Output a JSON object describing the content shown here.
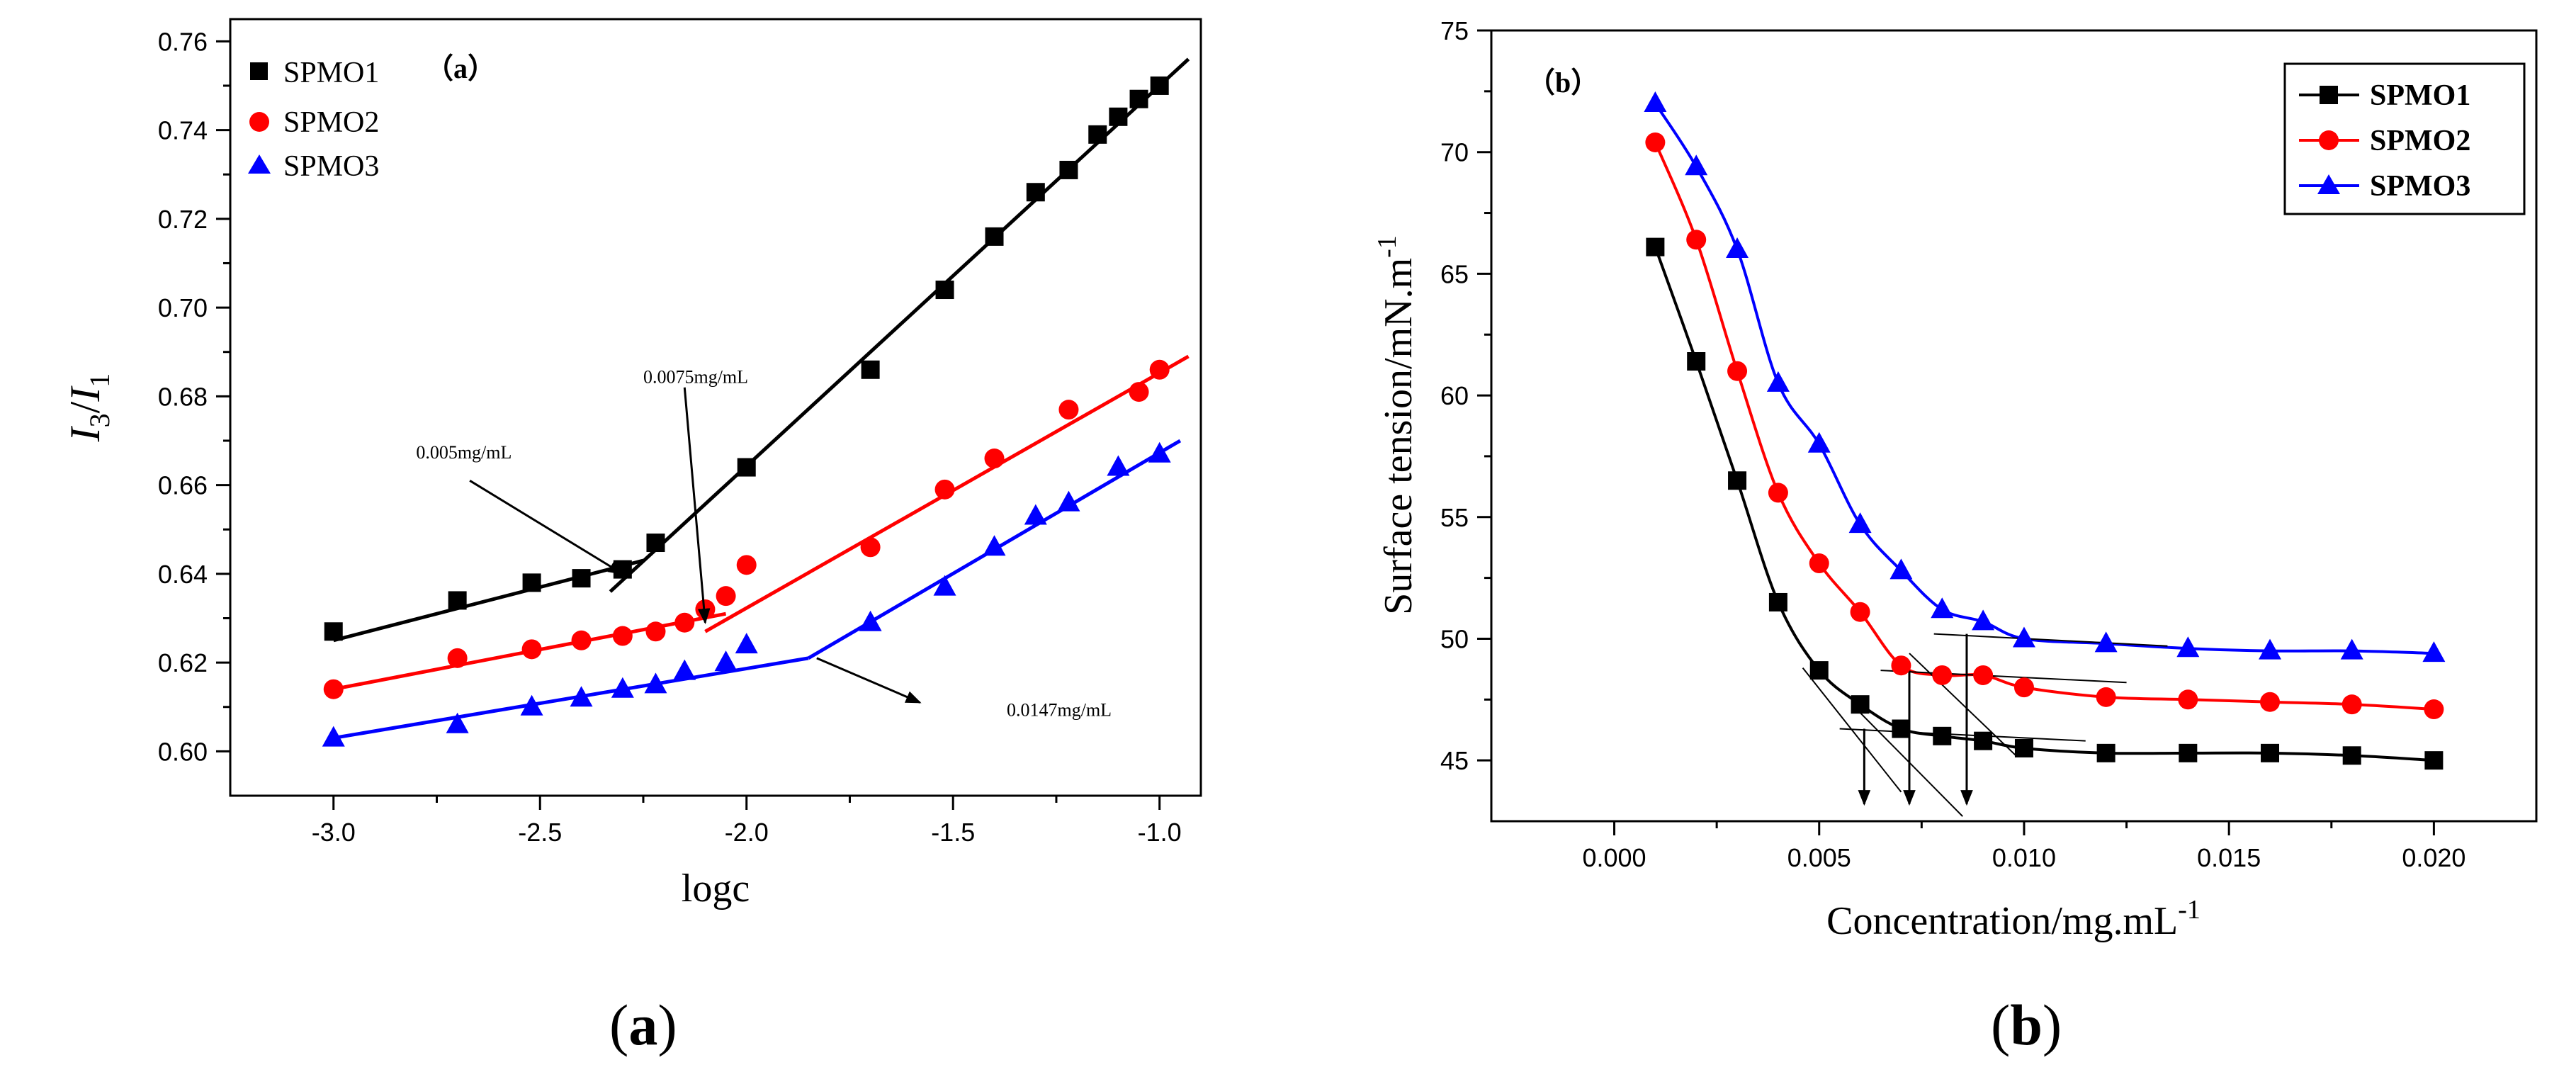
{
  "captions": {
    "a_open": "(",
    "a_letter": "a",
    "a_close": ")",
    "b_open": "(",
    "b_letter": "b",
    "b_close": ")"
  },
  "chart_data": [
    {
      "type": "scatter",
      "panel_label": "（a）",
      "title": "",
      "xlabel": "logc",
      "ylabel": {
        "main": "I",
        "sub1": "3",
        "slash": "/",
        "sub2": "1"
      },
      "xlim": [
        -3.25,
        -0.9
      ],
      "ylim": [
        0.59,
        0.765
      ],
      "xticks": [
        -3.0,
        -2.5,
        -2.0,
        -1.5,
        -1.0
      ],
      "xtick_labels": [
        "-3.0",
        "-2.5",
        "-2.0",
        "-1.5",
        "-1.0"
      ],
      "yticks": [
        0.6,
        0.62,
        0.64,
        0.66,
        0.68,
        0.7,
        0.72,
        0.74,
        0.76
      ],
      "ytick_labels": [
        "0.60",
        "0.62",
        "0.64",
        "0.66",
        "0.68",
        "0.70",
        "0.72",
        "0.74",
        "0.76"
      ],
      "legend": "top-left",
      "series": [
        {
          "name": "SPMO1",
          "marker": "square",
          "color": "#000000",
          "x": [
            -3.0,
            -2.7,
            -2.52,
            -2.4,
            -2.3,
            -2.22,
            -2.0,
            -1.7,
            -1.52,
            -1.4,
            -1.3,
            -1.22,
            -1.15,
            -1.1,
            -1.05,
            -1.0
          ],
          "y": [
            0.627,
            0.634,
            0.638,
            0.639,
            0.641,
            0.647,
            0.664,
            0.686,
            0.704,
            0.716,
            0.726,
            0.731,
            0.739,
            0.743,
            0.747,
            0.75
          ],
          "fit_lines": [
            {
              "x": [
                -3.0,
                -2.25
              ],
              "y": [
                0.625,
                0.643
              ]
            },
            {
              "x": [
                -2.33,
                -0.93
              ],
              "y": [
                0.636,
                0.756
              ]
            }
          ]
        },
        {
          "name": "SPMO2",
          "marker": "circle",
          "color": "#ff0000",
          "x": [
            -3.0,
            -2.7,
            -2.52,
            -2.4,
            -2.3,
            -2.22,
            -2.15,
            -2.1,
            -2.05,
            -2.0,
            -1.7,
            -1.52,
            -1.4,
            -1.22,
            -1.05,
            -1.0
          ],
          "y": [
            0.614,
            0.621,
            0.623,
            0.625,
            0.626,
            0.627,
            0.629,
            0.632,
            0.635,
            0.642,
            0.646,
            0.659,
            0.666,
            0.677,
            0.681,
            0.686
          ],
          "fit_lines": [
            {
              "x": [
                -3.0,
                -2.05
              ],
              "y": [
                0.614,
                0.631
              ]
            },
            {
              "x": [
                -2.1,
                -0.93
              ],
              "y": [
                0.627,
                0.689
              ]
            }
          ]
        },
        {
          "name": "SPMO3",
          "marker": "triangle",
          "color": "#0000ff",
          "x": [
            -3.0,
            -2.7,
            -2.52,
            -2.4,
            -2.3,
            -2.22,
            -2.15,
            -2.05,
            -2.0,
            -1.7,
            -1.52,
            -1.4,
            -1.3,
            -1.22,
            -1.1,
            -1.0
          ],
          "y": [
            0.603,
            0.606,
            0.61,
            0.612,
            0.614,
            0.615,
            0.618,
            0.62,
            0.624,
            0.629,
            0.637,
            0.646,
            0.653,
            0.656,
            0.664,
            0.667
          ],
          "fit_lines": [
            {
              "x": [
                -3.0,
                -1.85
              ],
              "y": [
                0.603,
                0.621
              ]
            },
            {
              "x": [
                -1.85,
                -0.95
              ],
              "y": [
                0.621,
                0.67
              ]
            }
          ]
        }
      ],
      "annotations": [
        {
          "text": "0.005mg/mL",
          "text_x": -2.8,
          "text_y": 0.666,
          "from": [
            -2.67,
            0.661
          ],
          "to": [
            -2.3,
            0.64
          ]
        },
        {
          "text": "0.0075mg/mL",
          "text_x": -2.25,
          "text_y": 0.683,
          "from": [
            -2.15,
            0.682
          ],
          "to": [
            -2.1,
            0.629
          ]
        },
        {
          "text": "0.0147mg/mL",
          "text_x": -1.37,
          "text_y": 0.608,
          "from": [
            -1.83,
            0.621
          ],
          "to": [
            -1.58,
            0.611
          ]
        }
      ]
    },
    {
      "type": "line",
      "panel_label": "（b）",
      "title": "",
      "xlabel": {
        "main": "Concentration/mg.mL",
        "sup": "-1"
      },
      "ylabel": {
        "main": "Surface tension/mN.m",
        "sup": "-1"
      },
      "xlim": [
        -0.003,
        0.0225
      ],
      "ylim": [
        42.5,
        75
      ],
      "xticks": [
        0.0,
        0.005,
        0.01,
        0.015,
        0.02
      ],
      "xtick_labels": [
        "0.000",
        "0.005",
        "0.010",
        "0.015",
        "0.020"
      ],
      "yticks": [
        45,
        50,
        55,
        60,
        65,
        70,
        75
      ],
      "ytick_labels": [
        "45",
        "50",
        "55",
        "60",
        "65",
        "70",
        "75"
      ],
      "legend": "top-right",
      "series": [
        {
          "name": "SPMO1",
          "marker": "square",
          "color": "#000000",
          "x": [
            0.001,
            0.002,
            0.003,
            0.004,
            0.005,
            0.006,
            0.007,
            0.008,
            0.009,
            0.01,
            0.012,
            0.014,
            0.016,
            0.018,
            0.02
          ],
          "y": [
            66.1,
            61.4,
            56.5,
            51.5,
            48.7,
            47.3,
            46.3,
            46.0,
            45.8,
            45.5,
            45.3,
            45.3,
            45.3,
            45.2,
            45.0
          ]
        },
        {
          "name": "SPMO2",
          "marker": "circle",
          "color": "#ff0000",
          "x": [
            0.001,
            0.002,
            0.003,
            0.004,
            0.005,
            0.006,
            0.007,
            0.008,
            0.009,
            0.01,
            0.012,
            0.014,
            0.016,
            0.018,
            0.02
          ],
          "y": [
            70.4,
            66.4,
            61.0,
            56.0,
            53.1,
            51.1,
            48.9,
            48.5,
            48.5,
            48.0,
            47.6,
            47.5,
            47.4,
            47.3,
            47.1
          ]
        },
        {
          "name": "SPMO3",
          "marker": "triangle",
          "color": "#0000ff",
          "x": [
            0.001,
            0.002,
            0.003,
            0.004,
            0.005,
            0.006,
            0.007,
            0.008,
            0.009,
            0.01,
            0.012,
            0.014,
            0.016,
            0.018,
            0.02
          ],
          "y": [
            72.0,
            69.4,
            66.0,
            60.5,
            58.0,
            54.7,
            52.8,
            51.2,
            50.7,
            50.0,
            49.8,
            49.6,
            49.5,
            49.5,
            49.4
          ]
        }
      ],
      "tangent_lines": [
        {
          "x": [
            0.0046,
            0.007
          ],
          "y": [
            48.8,
            43.7
          ]
        },
        {
          "x": [
            0.0058,
            0.0085
          ],
          "y": [
            47.3,
            42.7
          ]
        },
        {
          "x": [
            0.0072,
            0.0098
          ],
          "y": [
            49.4,
            45.2
          ]
        },
        {
          "x": [
            0.0055,
            0.0115
          ],
          "y": [
            46.3,
            45.8
          ]
        },
        {
          "x": [
            0.0065,
            0.0125
          ],
          "y": [
            48.7,
            48.2
          ]
        },
        {
          "x": [
            0.0078,
            0.0135
          ],
          "y": [
            50.2,
            49.7
          ]
        }
      ],
      "cmc_arrows": [
        {
          "x": 0.0061,
          "y_from": 46.3,
          "y_to": 43.2
        },
        {
          "x": 0.0072,
          "y_from": 48.7,
          "y_to": 43.2
        },
        {
          "x": 0.0086,
          "y_from": 50.2,
          "y_to": 43.2
        }
      ]
    }
  ]
}
